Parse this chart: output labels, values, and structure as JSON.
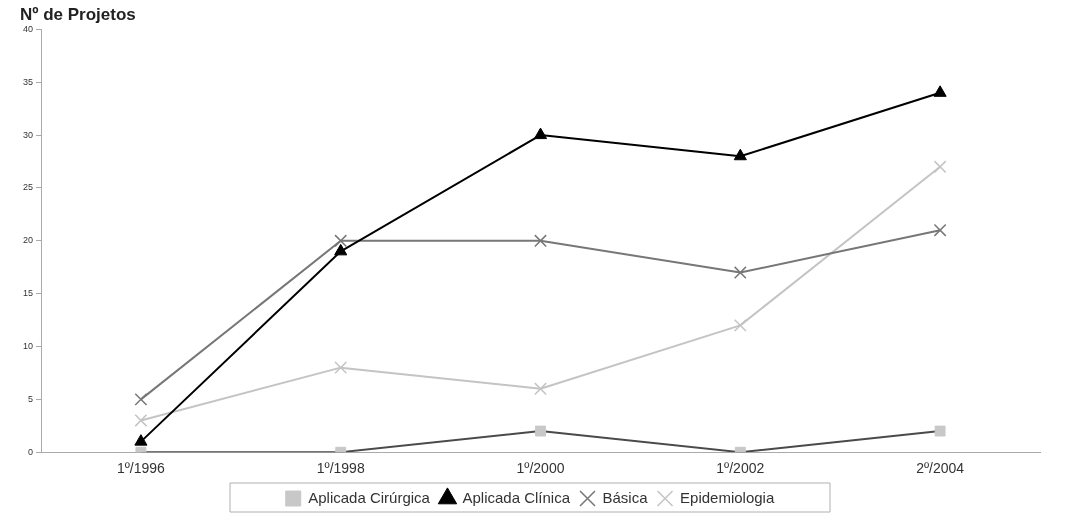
{
  "chart_data": {
    "type": "line",
    "title": "Nº de Projetos",
    "categories": [
      "1º/1996",
      "1º/1998",
      "1º/2000",
      "1º/2002",
      "2º/2004"
    ],
    "series": [
      {
        "name": "Aplicada Cirúrgica",
        "color": "#4a4a4a",
        "marker": "square",
        "values": [
          0,
          0,
          2,
          0,
          2
        ]
      },
      {
        "name": "Aplicada Clínica",
        "color": "#000000",
        "marker": "triangle",
        "values": [
          1,
          19,
          30,
          28,
          34
        ]
      },
      {
        "name": "Básica",
        "color": "#777777",
        "marker": "cross",
        "values": [
          5,
          20,
          20,
          17,
          21
        ]
      },
      {
        "name": "Epidemiologia",
        "color": "#c4c4c4",
        "marker": "cross",
        "values": [
          3,
          8,
          6,
          12,
          27
        ]
      }
    ],
    "ylim": [
      0,
      40
    ],
    "yticks": [
      0,
      5,
      10,
      15,
      20,
      25,
      30,
      35,
      40
    ],
    "grid": false,
    "legend": "bottom",
    "line_style": "solid"
  }
}
